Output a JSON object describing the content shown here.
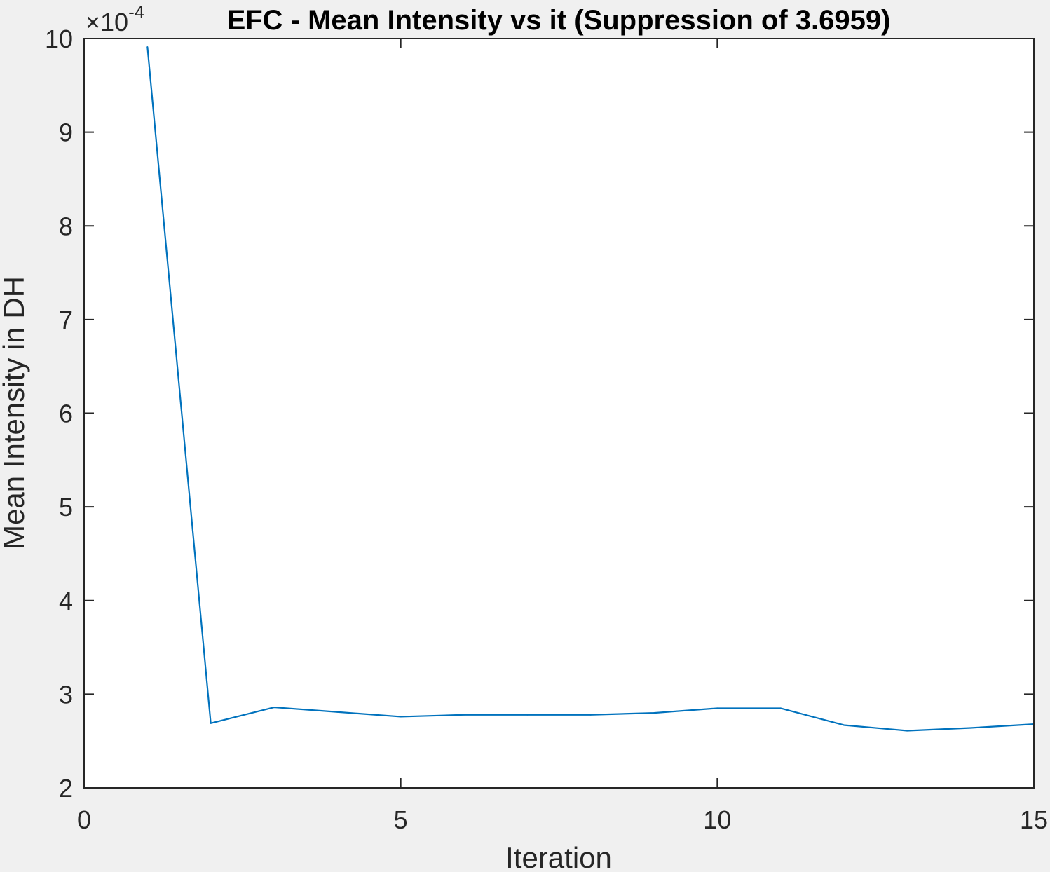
{
  "chart_data": {
    "type": "line",
    "title": "EFC - Mean Intensity vs it (Suppression of 3.6959)",
    "xlabel": "Iteration",
    "ylabel": "Mean Intensity in DH",
    "y_multiplier": {
      "prefix": "×10",
      "exponent": "-4"
    },
    "xlim": [
      0,
      15
    ],
    "ylim": [
      2,
      10
    ],
    "y_scale_factor": 0.0001,
    "x_ticks": [
      0,
      5,
      10,
      15
    ],
    "y_ticks": [
      2,
      3,
      4,
      5,
      6,
      7,
      8,
      9,
      10
    ],
    "grid": false,
    "box": true,
    "series": [
      {
        "color": "#0072BD",
        "x": [
          1,
          2,
          3,
          4,
          5,
          6,
          7,
          8,
          9,
          10,
          11,
          12,
          13,
          14,
          15
        ],
        "y": [
          9.91,
          2.69,
          2.86,
          2.81,
          2.76,
          2.78,
          2.78,
          2.78,
          2.8,
          2.85,
          2.85,
          2.67,
          2.61,
          2.64,
          2.68
        ]
      }
    ]
  }
}
